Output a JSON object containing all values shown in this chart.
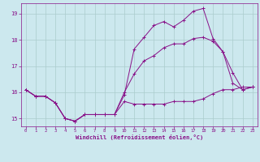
{
  "xlabel": "Windchill (Refroidissement éolien,°C)",
  "background_color": "#cce8ee",
  "grid_color": "#aacccc",
  "line_color": "#881188",
  "xlim": [
    -0.5,
    23.5
  ],
  "ylim": [
    14.7,
    19.4
  ],
  "yticks": [
    15,
    16,
    17,
    18,
    19
  ],
  "xticks": [
    0,
    1,
    2,
    3,
    4,
    5,
    6,
    7,
    8,
    9,
    10,
    11,
    12,
    13,
    14,
    15,
    16,
    17,
    18,
    19,
    20,
    21,
    22,
    23
  ],
  "line1_x": [
    0,
    1,
    2,
    3,
    4,
    5,
    6,
    7,
    8,
    9,
    10,
    11,
    12,
    13,
    14,
    15,
    16,
    17,
    18,
    19,
    20,
    21,
    22,
    23
  ],
  "line1_y": [
    16.1,
    15.85,
    15.85,
    15.6,
    15.0,
    14.9,
    15.15,
    15.15,
    15.15,
    15.15,
    15.65,
    15.55,
    15.55,
    15.55,
    15.55,
    15.65,
    15.65,
    15.65,
    15.75,
    15.95,
    16.1,
    16.1,
    16.2,
    16.2
  ],
  "line2_x": [
    0,
    1,
    2,
    3,
    4,
    5,
    6,
    7,
    8,
    9,
    10,
    11,
    12,
    13,
    14,
    15,
    16,
    17,
    18,
    19,
    20,
    21,
    22,
    23
  ],
  "line2_y": [
    16.1,
    15.85,
    15.85,
    15.6,
    15.0,
    14.9,
    15.15,
    15.15,
    15.15,
    15.15,
    15.9,
    17.65,
    18.1,
    18.55,
    18.7,
    18.5,
    18.75,
    19.1,
    19.2,
    18.05,
    17.55,
    16.35,
    16.1,
    16.2
  ],
  "line3_x": [
    0,
    1,
    2,
    3,
    4,
    5,
    6,
    7,
    8,
    9,
    10,
    11,
    12,
    13,
    14,
    15,
    16,
    17,
    18,
    19,
    20,
    21,
    22,
    23
  ],
  "line3_y": [
    16.1,
    15.85,
    15.85,
    15.6,
    15.0,
    14.9,
    15.15,
    15.15,
    15.15,
    15.15,
    16.0,
    16.7,
    17.2,
    17.4,
    17.7,
    17.85,
    17.85,
    18.05,
    18.1,
    17.95,
    17.55,
    16.75,
    16.1,
    16.2
  ]
}
